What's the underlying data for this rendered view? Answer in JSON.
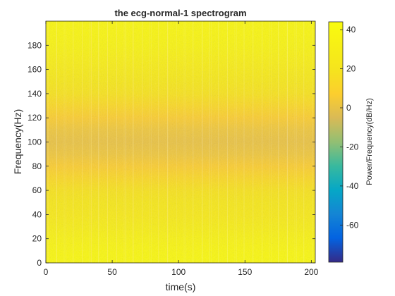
{
  "chart_data": {
    "type": "heatmap",
    "title": "the ecg-normal-1 spectrogram",
    "xlabel": "time(s)",
    "ylabel": "Frequency(Hz)",
    "xlim": [
      0,
      203
    ],
    "ylim": [
      0,
      200
    ],
    "x_ticks": [
      0,
      50,
      100,
      150,
      200
    ],
    "y_ticks": [
      0,
      20,
      40,
      60,
      80,
      100,
      120,
      140,
      160,
      180
    ],
    "colorbar": {
      "label": "Power/Frequency(dB/Hz)",
      "limits": [
        -79,
        44
      ],
      "ticks": [
        40,
        20,
        0,
        -20,
        -40,
        -60
      ],
      "colormap": "parula",
      "position": "right"
    },
    "power_profile": {
      "frequency_hz": [
        0,
        10,
        20,
        30,
        40,
        50,
        60,
        70,
        80,
        90,
        100,
        110,
        120,
        130,
        140,
        150,
        160,
        170,
        180,
        190,
        200
      ],
      "power_db_hz": [
        40,
        38,
        33,
        28,
        24,
        22,
        18,
        12,
        6,
        2,
        0,
        2,
        6,
        12,
        18,
        22,
        26,
        30,
        34,
        37,
        39
      ]
    },
    "grid": false
  }
}
